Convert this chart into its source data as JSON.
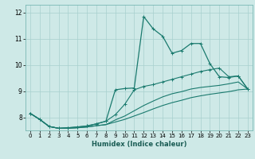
{
  "xlabel": "Humidex (Indice chaleur)",
  "bg_color": "#cee9e7",
  "grid_color": "#a8d0ce",
  "line_color": "#1a7a6e",
  "xlim": [
    -0.5,
    23.5
  ],
  "ylim": [
    7.5,
    12.3
  ],
  "xticks": [
    0,
    1,
    2,
    3,
    4,
    5,
    6,
    7,
    8,
    9,
    10,
    11,
    12,
    13,
    14,
    15,
    16,
    17,
    18,
    19,
    20,
    21,
    22,
    23
  ],
  "yticks": [
    8,
    9,
    10,
    11,
    12
  ],
  "line_spike_x": [
    0,
    1,
    2,
    3,
    4,
    5,
    6,
    7,
    8,
    9,
    10,
    11,
    12,
    13,
    14,
    15,
    16,
    17,
    18,
    19,
    20,
    21,
    22,
    23
  ],
  "line_spike_y": [
    8.15,
    7.92,
    7.65,
    7.58,
    7.6,
    7.63,
    7.67,
    7.75,
    7.85,
    9.05,
    9.1,
    9.12,
    11.85,
    11.38,
    11.1,
    10.45,
    10.55,
    10.82,
    10.82,
    10.05,
    9.55,
    9.52,
    9.58,
    9.08
  ],
  "line_mid_x": [
    0,
    1,
    2,
    3,
    4,
    5,
    6,
    7,
    8,
    9,
    10,
    11,
    12,
    13,
    14,
    15,
    16,
    17,
    18,
    19,
    20,
    21,
    22,
    23
  ],
  "line_mid_y": [
    8.15,
    7.92,
    7.65,
    7.58,
    7.6,
    7.63,
    7.67,
    7.75,
    7.85,
    8.1,
    8.5,
    9.05,
    9.18,
    9.25,
    9.35,
    9.45,
    9.55,
    9.65,
    9.75,
    9.82,
    9.88,
    9.55,
    9.58,
    9.08
  ],
  "line_low_x": [
    0,
    1,
    2,
    3,
    4,
    5,
    6,
    7,
    8,
    9,
    10,
    11,
    12,
    13,
    14,
    15,
    16,
    17,
    18,
    19,
    20,
    21,
    22,
    23
  ],
  "line_low_y": [
    8.15,
    7.92,
    7.65,
    7.58,
    7.58,
    7.6,
    7.63,
    7.68,
    7.72,
    7.9,
    8.05,
    8.25,
    8.45,
    8.62,
    8.78,
    8.9,
    8.98,
    9.08,
    9.14,
    9.18,
    9.22,
    9.28,
    9.35,
    9.08
  ],
  "line_flat_x": [
    0,
    1,
    2,
    3,
    4,
    5,
    6,
    7,
    8,
    9,
    10,
    11,
    12,
    13,
    14,
    15,
    16,
    17,
    18,
    19,
    20,
    21,
    22,
    23
  ],
  "line_flat_y": [
    8.15,
    7.92,
    7.65,
    7.58,
    7.58,
    7.6,
    7.63,
    7.68,
    7.72,
    7.82,
    7.92,
    8.05,
    8.18,
    8.32,
    8.45,
    8.56,
    8.65,
    8.75,
    8.82,
    8.88,
    8.93,
    8.98,
    9.05,
    9.08
  ]
}
